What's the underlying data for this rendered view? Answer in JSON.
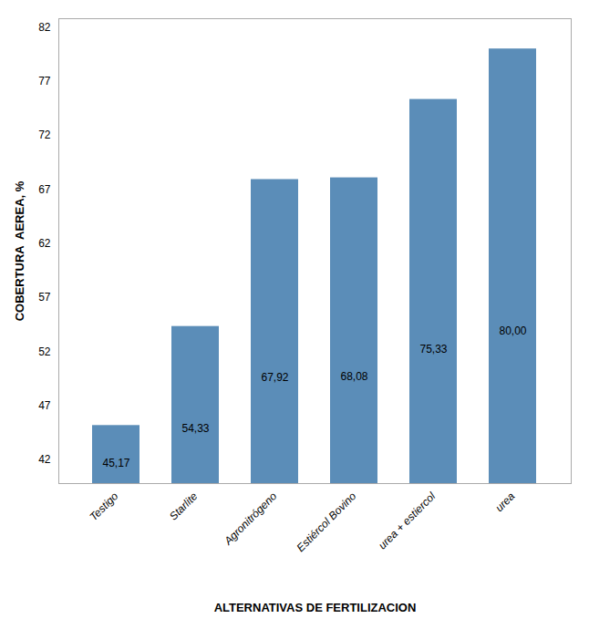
{
  "chart_data": {
    "type": "bar",
    "xlabel": "ALTERNATIVAS DE FERTILIZACION",
    "ylabel": "COBERTURA  AEREA, %",
    "categories": [
      "Testigo",
      "Starlite",
      "Agronitrógeno",
      "Estiércol Bovino",
      "urea + estiercol",
      "urea"
    ],
    "values": [
      45.17,
      54.33,
      67.92,
      68.08,
      75.33,
      80.0
    ],
    "value_labels": [
      "45,17",
      "54,33",
      "67,92",
      "68,08",
      "75,33",
      "80,00"
    ],
    "data_labels": true,
    "color": "#5b8db8",
    "ylim": [
      39.8,
      82.8
    ],
    "yticks": [
      42,
      47,
      52,
      57,
      62,
      67,
      72,
      77,
      82
    ],
    "grid": false
  }
}
